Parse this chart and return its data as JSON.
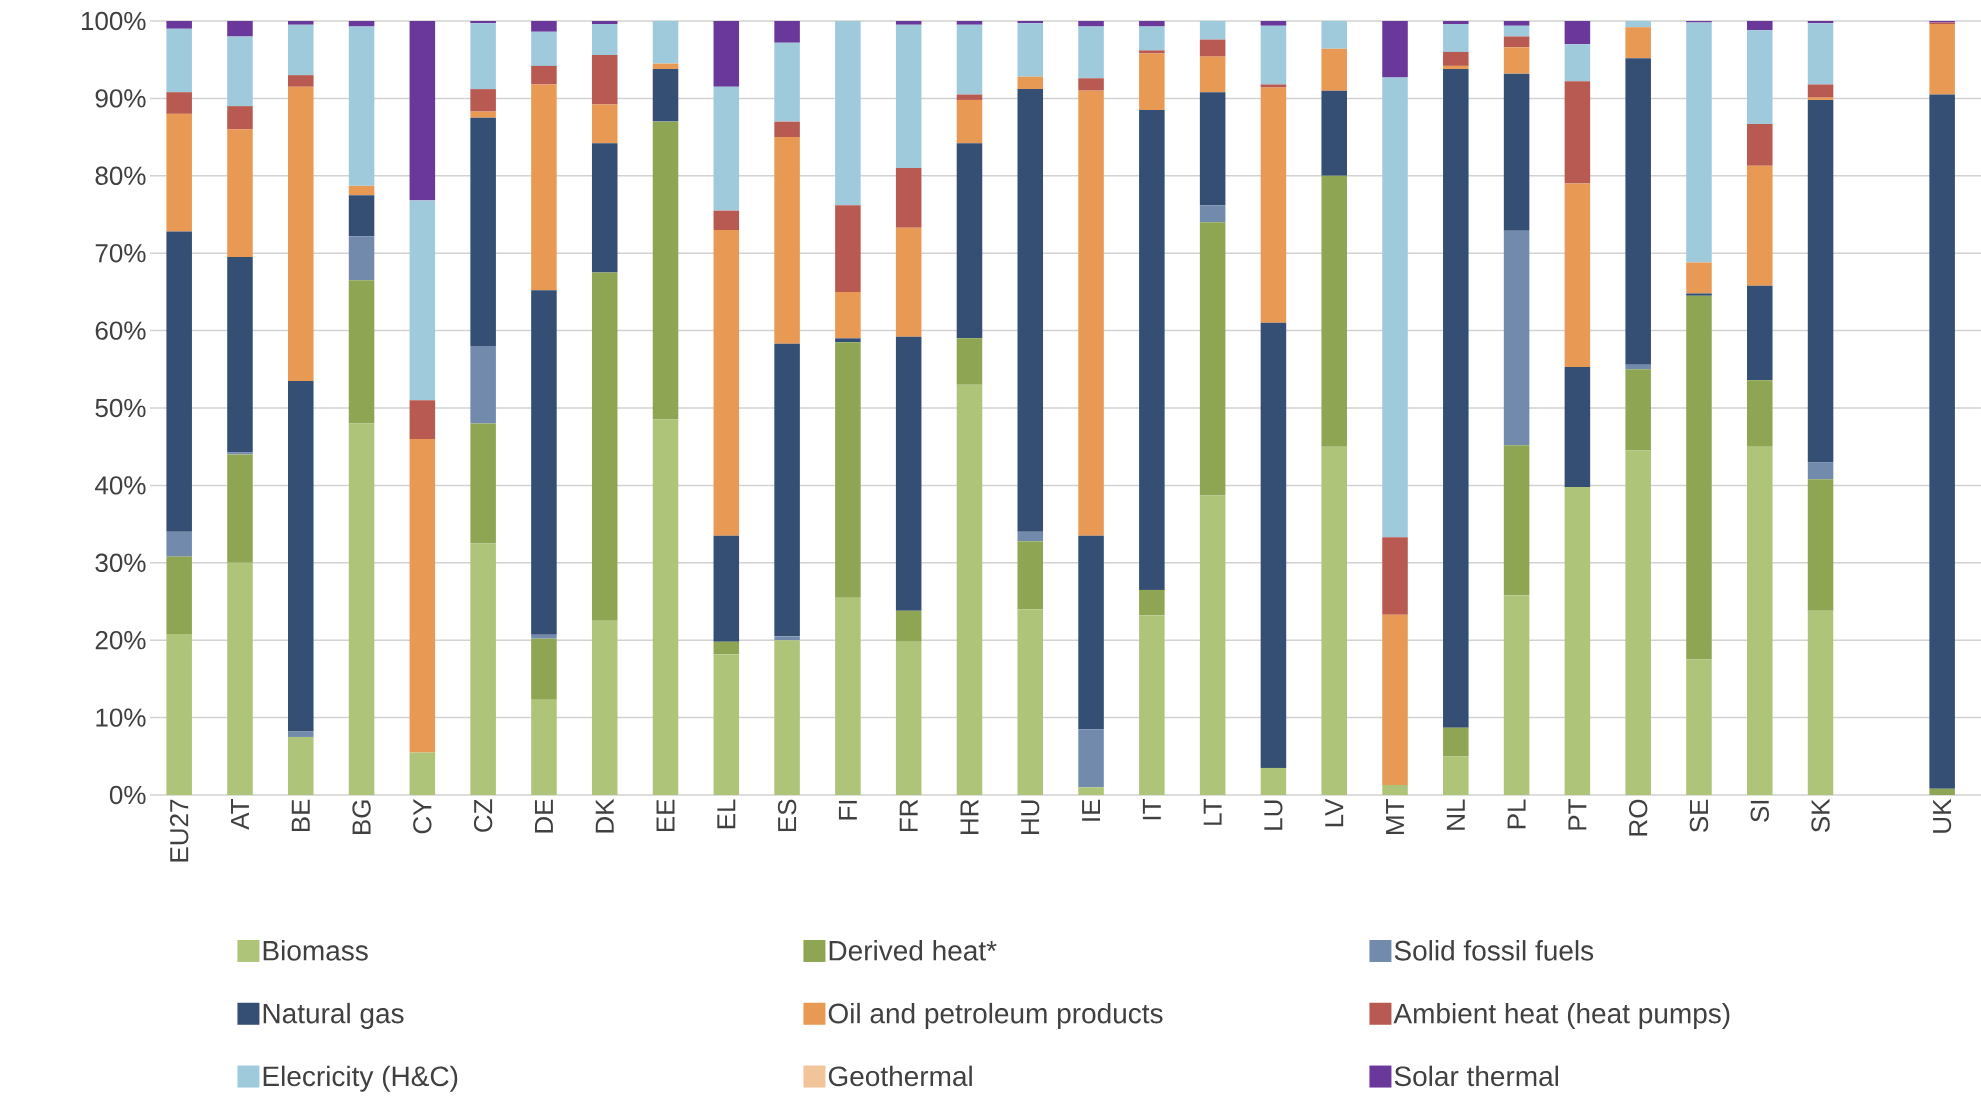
{
  "chart_data": {
    "type": "bar",
    "stacked": true,
    "grid": "y",
    "legend": "bottom",
    "categories": [
      "EU27",
      "AT",
      "BE",
      "BG",
      "CY",
      "CZ",
      "DE",
      "DK",
      "EE",
      "EL",
      "ES",
      "FI",
      "FR",
      "HR",
      "HU",
      "IE",
      "IT",
      "LT",
      "LU",
      "LV",
      "MT",
      "NL",
      "PL",
      "PT",
      "RO",
      "SE",
      "SI",
      "SK",
      null,
      "UK"
    ],
    "ylim": [
      0,
      100
    ],
    "yticks": [
      {
        "value": 0,
        "label": "0%"
      },
      {
        "value": 10,
        "label": "10%"
      },
      {
        "value": 20,
        "label": "20%"
      },
      {
        "value": 30,
        "label": "30%"
      },
      {
        "value": 40,
        "label": "40%"
      },
      {
        "value": 50,
        "label": "50%"
      },
      {
        "value": 60,
        "label": "60%"
      },
      {
        "value": 70,
        "label": "70%"
      },
      {
        "value": 80,
        "label": "80%"
      },
      {
        "value": 90,
        "label": "90%"
      },
      {
        "value": 100,
        "label": "100%"
      }
    ],
    "series": [
      {
        "name": "Biomass",
        "color": "#adc479",
        "values": [
          20.8,
          30,
          7.5,
          48,
          5.5,
          32.5,
          12.3,
          22.5,
          48.5,
          18.2,
          20,
          25.5,
          19.8,
          53,
          24,
          1,
          23.2,
          38.7,
          3.5,
          45,
          1.3,
          5,
          25.8,
          39.8,
          44.5,
          17.5,
          45,
          23.8,
          null,
          0
        ]
      },
      {
        "name": "Derived heat*",
        "color": "#8ea653",
        "values": [
          10,
          14,
          0,
          18.5,
          0,
          15.5,
          7.9,
          45,
          38.5,
          1.6,
          0,
          33,
          4,
          6,
          8.8,
          0,
          3.3,
          35.3,
          0,
          35,
          0,
          3.7,
          19.4,
          0,
          10.5,
          47,
          8.6,
          17,
          null,
          0.8
        ]
      },
      {
        "name": "Solid fossil fuels",
        "color": "#728bad",
        "values": [
          3.2,
          0.3,
          0.7,
          5.7,
          0,
          10,
          0.5,
          0,
          0,
          0,
          0.5,
          0,
          0,
          0,
          1.2,
          7.5,
          0,
          2.2,
          0,
          0,
          0,
          0,
          27.7,
          0,
          0.6,
          0,
          0,
          2.2,
          null,
          0
        ]
      },
      {
        "name": "Natural gas",
        "color": "#344e74",
        "values": [
          38.8,
          25.2,
          45.3,
          5.3,
          0,
          29.5,
          44.5,
          16.7,
          6.8,
          13.7,
          37.8,
          0.5,
          35.4,
          25.2,
          57.2,
          25,
          62,
          14.6,
          57.5,
          11,
          0,
          85.1,
          20.3,
          15.5,
          39.6,
          0.3,
          12.2,
          46.8,
          null,
          89.7
        ]
      },
      {
        "name": "Oil and petroleum products",
        "color": "#e89a55",
        "values": [
          15.2,
          16.5,
          38,
          1.2,
          40.5,
          0.8,
          26.6,
          5,
          0.7,
          39.5,
          26.7,
          6,
          14.1,
          5.6,
          1.6,
          57.5,
          7.3,
          4.6,
          30.4,
          5.4,
          22,
          0.4,
          3.4,
          23.7,
          4,
          4,
          15.5,
          0.3,
          null,
          9.1
        ]
      },
      {
        "name": "Ambient heat (heat pumps)",
        "color": "#b85a52",
        "values": [
          2.8,
          3,
          1.5,
          0,
          5,
          2.9,
          2.4,
          6.4,
          0,
          2.5,
          2,
          11.2,
          7.7,
          0.7,
          0,
          1.6,
          0.4,
          2.2,
          0.4,
          0,
          10,
          1.8,
          1.4,
          13.2,
          0,
          0,
          5.4,
          1.7,
          null,
          0.2
        ]
      },
      {
        "name": "Elecricity (H&C)",
        "color": "#9fcadb",
        "values": [
          8.2,
          9,
          6.5,
          20.6,
          25.8,
          8.5,
          4.4,
          4,
          5.5,
          16,
          10.2,
          23.8,
          18.5,
          9,
          6.9,
          6.7,
          3.1,
          2.4,
          7.6,
          3.6,
          59.4,
          3.6,
          1.4,
          4.8,
          0.8,
          31,
          12.1,
          7.9,
          null,
          0
        ]
      },
      {
        "name": "Geothermal",
        "color": "#f2c49a",
        "values": [
          0,
          0,
          0,
          0,
          0,
          0,
          0,
          0,
          0,
          0,
          0,
          0,
          0,
          0,
          0,
          0,
          0,
          0,
          0,
          0,
          0,
          0,
          0,
          0,
          0,
          0,
          0,
          0,
          null,
          0
        ]
      },
      {
        "name": "Solar thermal",
        "color": "#6a379a",
        "values": [
          1,
          2,
          0.5,
          0.7,
          23.2,
          0.3,
          1.4,
          0.4,
          0,
          8.5,
          2.8,
          0,
          0.5,
          0.5,
          0.3,
          0.7,
          0.7,
          0,
          0.6,
          0,
          7.3,
          0.4,
          0.6,
          3,
          0,
          0.2,
          1.2,
          0.3,
          null,
          0.2
        ]
      }
    ]
  }
}
